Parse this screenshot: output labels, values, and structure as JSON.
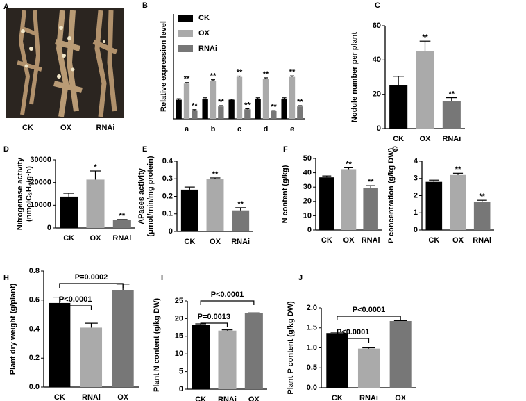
{
  "photo": {
    "label": "A",
    "captions": [
      "CK",
      "OX",
      "RNAi"
    ]
  },
  "chart_data": [
    {
      "label": "B",
      "type": "bar",
      "ylabel": [
        "Relative expression level"
      ],
      "categories": [
        "a",
        "b",
        "c",
        "d",
        "e"
      ],
      "ylim": [
        0,
        5.5
      ],
      "legend": "top-left",
      "series": [
        {
          "name": "CK",
          "color": "#000000",
          "values": [
            1.0,
            1.05,
            1.0,
            1.05,
            1.05
          ],
          "errors": [
            0.05,
            0.05,
            0.03,
            0.05,
            0.05
          ],
          "marks": [
            null,
            null,
            null,
            null,
            null
          ]
        },
        {
          "name": "OX",
          "color": "#aaaaaa",
          "values": [
            1.85,
            2.0,
            2.2,
            2.1,
            2.2
          ],
          "errors": [
            0.05,
            0.05,
            0.04,
            0.05,
            0.05
          ],
          "marks": [
            "**",
            "**",
            "**",
            "**",
            "**"
          ]
        },
        {
          "name": "RNAi",
          "color": "#777777",
          "values": [
            0.45,
            0.65,
            0.5,
            0.4,
            0.65
          ],
          "errors": [
            0.03,
            0.04,
            0.03,
            0.03,
            0.04
          ],
          "marks": [
            "**",
            "**",
            "**",
            "**",
            "**"
          ]
        }
      ]
    },
    {
      "label": "C",
      "type": "bar",
      "ylabel": [
        "Nodule number per plant"
      ],
      "categories": [
        "CK",
        "OX",
        "RNAi"
      ],
      "colors": [
        "#000000",
        "#aaaaaa",
        "#777777"
      ],
      "values": [
        25.5,
        45,
        16
      ],
      "errors": [
        5,
        6,
        2
      ],
      "marks": [
        null,
        "**",
        "**"
      ],
      "ylim": [
        0,
        60
      ],
      "yticks": [
        0,
        20,
        40,
        60
      ]
    },
    {
      "label": "D",
      "type": "bar",
      "ylabel": [
        "Nitrogenase activity",
        "(nmolC₂H₄/g·h)"
      ],
      "categories": [
        "CK",
        "OX",
        "RNAi"
      ],
      "colors": [
        "#000000",
        "#aaaaaa",
        "#777777"
      ],
      "values": [
        13800,
        21300,
        3500
      ],
      "errors": [
        1500,
        3800,
        200
      ],
      "marks": [
        null,
        "*",
        "**"
      ],
      "ylim": [
        0,
        30000
      ],
      "yticks": [
        0,
        10000,
        20000,
        30000
      ]
    },
    {
      "label": "E",
      "type": "bar",
      "ylabel": [
        "APases activity",
        "(μmol/min/mg protein)"
      ],
      "categories": [
        "CK",
        "OX",
        "RNAi"
      ],
      "colors": [
        "#000000",
        "#aaaaaa",
        "#777777"
      ],
      "values": [
        0.238,
        0.297,
        0.12
      ],
      "errors": [
        0.015,
        0.008,
        0.015
      ],
      "marks": [
        null,
        "**",
        "**"
      ],
      "ylim": [
        0,
        0.4
      ],
      "yticks": [
        0,
        0.1,
        0.2,
        0.3,
        0.4
      ]
    },
    {
      "label": "F",
      "type": "bar",
      "ylabel": [
        "N content (g/kg)"
      ],
      "categories": [
        "CK",
        "OX",
        "RNAi"
      ],
      "colors": [
        "#000000",
        "#aaaaaa",
        "#777777"
      ],
      "values": [
        36.8,
        42.5,
        29.5
      ],
      "errors": [
        1,
        1,
        1.5
      ],
      "marks": [
        null,
        "**",
        "**"
      ],
      "ylim": [
        0,
        50
      ],
      "yticks": [
        0,
        10,
        20,
        30,
        40,
        50
      ]
    },
    {
      "label": "G",
      "type": "bar",
      "ylabel": [
        "P concentration (g/kg DW)"
      ],
      "categories": [
        "CK",
        "OX",
        "RNAi"
      ],
      "colors": [
        "#000000",
        "#aaaaaa",
        "#777777"
      ],
      "values": [
        2.8,
        3.2,
        1.65
      ],
      "errors": [
        0.1,
        0.1,
        0.08
      ],
      "marks": [
        null,
        "**",
        "**"
      ],
      "ylim": [
        0,
        4
      ],
      "yticks": [
        0,
        1,
        2,
        3,
        4
      ]
    },
    {
      "label": "H",
      "type": "bar",
      "ylabel": [
        "Plant dry weight (g/plant)"
      ],
      "categories": [
        "CK",
        "RNAi",
        "OX"
      ],
      "colors": [
        "#000000",
        "#aaaaaa",
        "#777777"
      ],
      "values": [
        0.58,
        0.41,
        0.67
      ],
      "errors": [
        0.04,
        0.03,
        0.04
      ],
      "ylim": [
        0,
        0.8
      ],
      "yticks": [
        {
          "value": 0,
          "label": "0.0"
        },
        0.2,
        0.4,
        0.6,
        0.8
      ],
      "brackets": [
        {
          "between": [
            0,
            1
          ],
          "label": "P<0.0001"
        },
        {
          "between": [
            0,
            2
          ],
          "label": "P=0.0002"
        }
      ]
    },
    {
      "label": "I",
      "type": "bar",
      "ylabel": [
        "Plant N content (g/kg DW)"
      ],
      "categories": [
        "CK",
        "RNAi",
        "OX"
      ],
      "colors": [
        "#000000",
        "#aaaaaa",
        "#777777"
      ],
      "values": [
        18.3,
        16.6,
        21.5
      ],
      "errors": [
        0.2,
        0.2,
        0.1
      ],
      "ylim": [
        0,
        25
      ],
      "yticks": [
        0,
        5,
        10,
        15,
        20,
        25
      ],
      "brackets": [
        {
          "between": [
            0,
            1
          ],
          "label": "P=0.0013"
        },
        {
          "between": [
            0,
            2
          ],
          "label": "P<0.0001"
        }
      ]
    },
    {
      "label": "J",
      "type": "bar",
      "ylabel": [
        "Plant P content (g/kg DW)"
      ],
      "categories": [
        "CK",
        "RNAi",
        "OX"
      ],
      "colors": [
        "#000000",
        "#aaaaaa",
        "#777777"
      ],
      "values": [
        1.37,
        0.98,
        1.67
      ],
      "errors": [
        0.02,
        0.02,
        0.01
      ],
      "ylim": [
        0,
        2.0
      ],
      "yticks": [
        {
          "value": 0,
          "label": "0.0"
        },
        0.5,
        {
          "value": 1,
          "label": "1.0"
        },
        1.5,
        {
          "value": 2,
          "label": "2.0"
        }
      ],
      "brackets": [
        {
          "between": [
            0,
            1
          ],
          "label": "P<0.0001"
        },
        {
          "between": [
            0,
            2
          ],
          "label": "P<0.0001"
        }
      ]
    }
  ]
}
